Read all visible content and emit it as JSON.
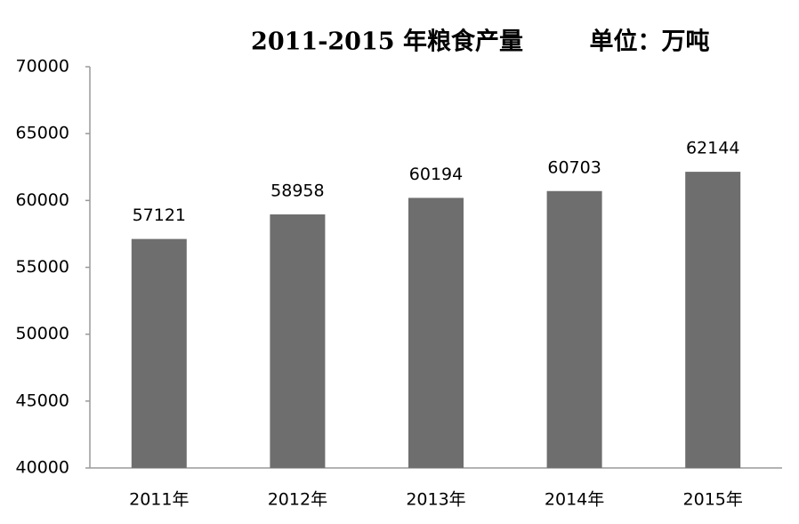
{
  "chart_data": {
    "type": "bar",
    "title": "2011-2015 年粮食产量",
    "unit_label": "单位：万吨",
    "categories": [
      "2011年",
      "2012年",
      "2013年",
      "2014年",
      "2015年"
    ],
    "values": [
      57121,
      58958,
      60194,
      60703,
      62144
    ],
    "color": "#6e6e6e",
    "ylim": [
      40000,
      70000
    ],
    "yticks": [
      40000,
      45000,
      50000,
      55000,
      60000,
      65000,
      70000
    ],
    "grid": false
  }
}
